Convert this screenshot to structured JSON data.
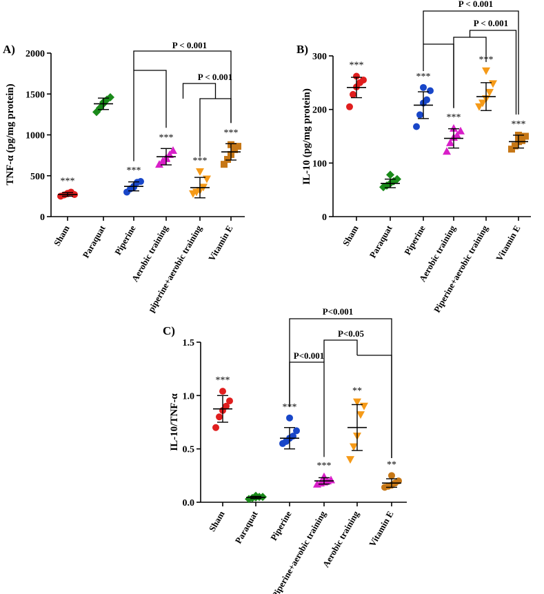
{
  "chart_data": [
    {
      "type": "scatter",
      "panel": "A)",
      "ylabel": "TNF-α (pg/mg protein)",
      "ylim": [
        0,
        2000
      ],
      "yticks": [
        "0",
        "500",
        "1000",
        "1500",
        "2000"
      ],
      "categories": [
        "Sham",
        "Paraquat",
        "Piperine",
        "Aerobic training",
        "piperine+aerobic training",
        "Vitamin E"
      ],
      "marker_colors": [
        "#e01e1e",
        "#1a8a1a",
        "#1846c8",
        "#d81fc8",
        "#f59a18",
        "#c67716"
      ],
      "markers": [
        "circle",
        "diamond",
        "circle",
        "triangle-up",
        "triangle-down",
        "square"
      ],
      "points": [
        [
          250,
          265,
          285,
          300,
          270,
          280
        ],
        [
          1280,
          1330,
          1380,
          1430,
          1460,
          1400
        ],
        [
          300,
          340,
          370,
          420,
          430,
          360
        ],
        [
          640,
          680,
          720,
          760,
          810,
          710
        ],
        [
          280,
          300,
          320,
          360,
          460,
          550
        ],
        [
          640,
          700,
          760,
          820,
          860,
          880
        ]
      ],
      "means": [
        272,
        1380,
        370,
        733,
        355,
        792
      ],
      "sds": [
        22,
        70,
        55,
        100,
        125,
        100
      ],
      "sig_marks": [
        "***",
        "",
        "***",
        "***",
        "***",
        "***"
      ],
      "brackets": [
        {
          "from": "Piperine",
          "to": "Vitamin E",
          "label": "P < 0.001"
        },
        {
          "from": "Aerobic training",
          "to": "Vitamin E",
          "label": "P < 0.001"
        }
      ]
    },
    {
      "type": "scatter",
      "panel": "B)",
      "ylabel": "IL-10 (pg/mg protein)",
      "ylim": [
        0,
        300
      ],
      "yticks": [
        "0",
        "100",
        "200",
        "300"
      ],
      "categories": [
        "Sham",
        "Paraquat",
        "Piperine",
        "Aerobic training",
        "Piperine+aerobic training",
        "Vitamin E"
      ],
      "marker_colors": [
        "#e01e1e",
        "#1a8a1a",
        "#1846c8",
        "#d81fc8",
        "#f59a18",
        "#c67716"
      ],
      "markers": [
        "circle",
        "diamond",
        "circle",
        "triangle-up",
        "triangle-down",
        "square"
      ],
      "points": [
        [
          205,
          228,
          242,
          250,
          255,
          262
        ],
        [
          55,
          58,
          62,
          66,
          70,
          78
        ],
        [
          168,
          190,
          212,
          218,
          235,
          241
        ],
        [
          122,
          138,
          148,
          152,
          160,
          165
        ],
        [
          205,
          212,
          220,
          232,
          248,
          272
        ],
        [
          126,
          132,
          140,
          142,
          150,
          152
        ]
      ],
      "means": [
        241,
        62,
        208,
        146,
        224,
        140
      ],
      "sds": [
        19,
        8,
        25,
        18,
        26,
        12
      ],
      "sig_marks": [
        "***",
        "",
        "***",
        "***",
        "***",
        "***"
      ],
      "brackets": [
        {
          "from": "Piperine",
          "to": "Vitamin E",
          "label": "P < 0.001"
        },
        {
          "from": "Aerobic training",
          "to": "Vitamin E",
          "label": "P < 0.001"
        }
      ]
    },
    {
      "type": "scatter",
      "panel": "C)",
      "ylabel": "IL-10/TNF-α",
      "ylim": [
        0,
        1.5
      ],
      "yticks": [
        "0.0",
        "0.5",
        "1.0",
        "1.5"
      ],
      "categories": [
        "Sham",
        "Paraquat",
        "Piperine",
        "Piperine+aerobic training",
        "Aerobic training",
        "Vitamin E"
      ],
      "marker_colors": [
        "#e01e1e",
        "#1a8a1a",
        "#1846c8",
        "#d81fc8",
        "#f59a18",
        "#c67716"
      ],
      "markers": [
        "circle",
        "diamond",
        "circle",
        "triangle-up",
        "triangle-down",
        "circle"
      ],
      "points": [
        [
          0.7,
          0.8,
          0.86,
          0.9,
          0.95,
          1.04
        ],
        [
          0.03,
          0.04,
          0.045,
          0.05,
          0.05,
          0.06
        ],
        [
          0.55,
          0.57,
          0.6,
          0.62,
          0.67,
          0.79
        ],
        [
          0.17,
          0.18,
          0.19,
          0.2,
          0.21,
          0.24
        ],
        [
          0.4,
          0.52,
          0.62,
          0.82,
          0.9,
          0.94
        ],
        [
          0.14,
          0.15,
          0.16,
          0.18,
          0.2,
          0.25
        ]
      ],
      "means": [
        0.875,
        0.045,
        0.6,
        0.2,
        0.7,
        0.18
      ],
      "sds": [
        0.125,
        0.01,
        0.1,
        0.03,
        0.215,
        0.04
      ],
      "sig_marks": [
        "***",
        "",
        "***",
        "***",
        "**",
        "**"
      ],
      "brackets": [
        {
          "from": "Piperine",
          "to": "Vitamin E",
          "label": "P<0.001"
        },
        {
          "from": "Piperine",
          "to": "Piperine+aerobic training",
          "label": "P<0.001"
        },
        {
          "from": "Piperine+aerobic training",
          "to": "Vitamin E",
          "label": "P<0.05"
        }
      ]
    }
  ]
}
